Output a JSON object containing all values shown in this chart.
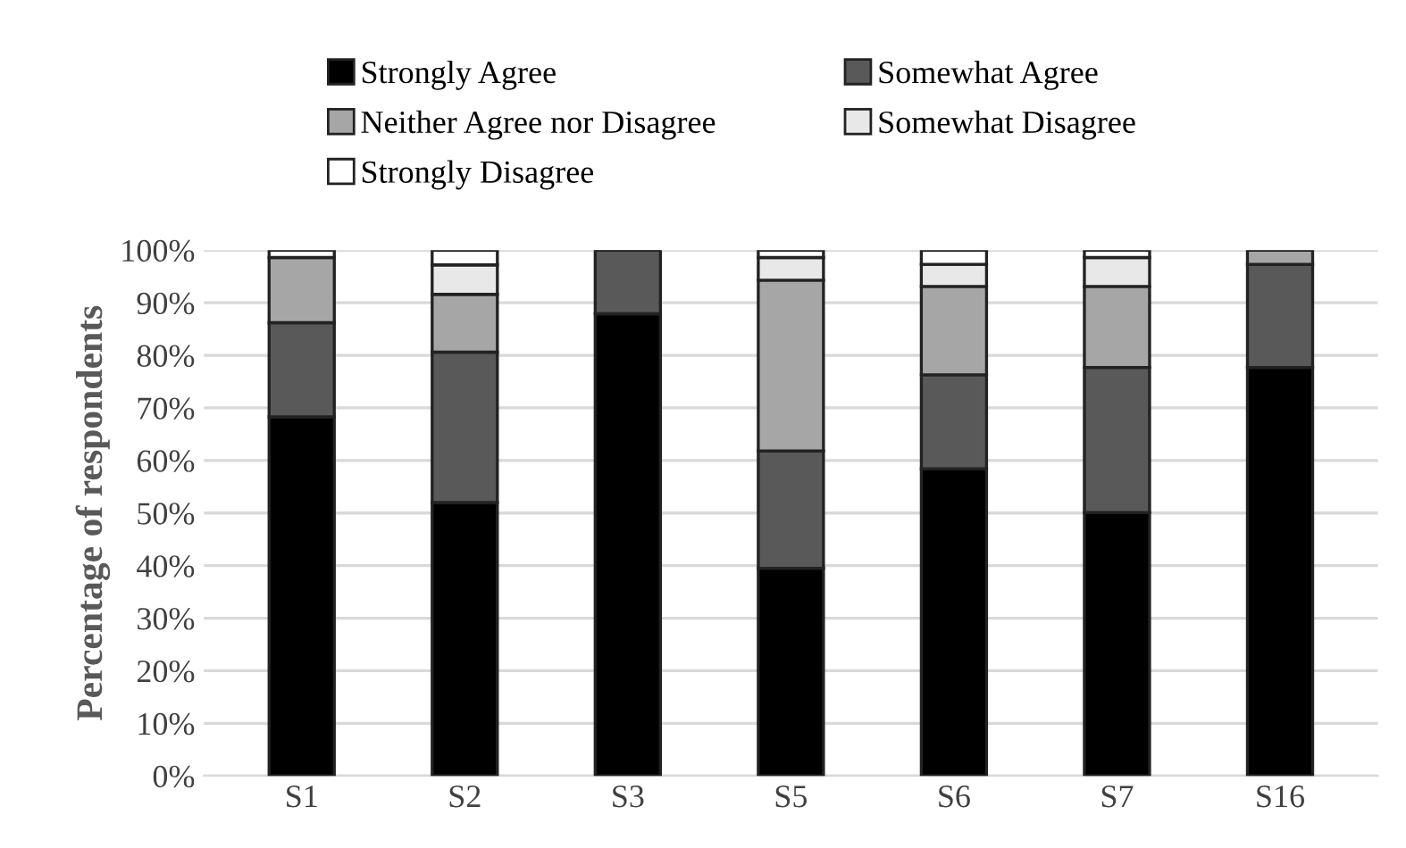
{
  "chart_data": {
    "type": "bar",
    "stacked": true,
    "ylabel": "Percentage of respondents",
    "categories": [
      "S1",
      "S2",
      "S3",
      "S5",
      "S6",
      "S7",
      "S16"
    ],
    "series": [
      {
        "name": "Strongly Agree",
        "color": "#000000",
        "values": [
          68.3,
          52.0,
          87.9,
          39.5,
          58.4,
          50.1,
          77.7
        ]
      },
      {
        "name": "Somewhat Agree",
        "color": "#595959",
        "values": [
          17.9,
          28.6,
          12.1,
          22.3,
          17.9,
          27.6,
          19.6
        ]
      },
      {
        "name": "Neither Agree nor Disagree",
        "color": "#a6a6a6",
        "values": [
          12.4,
          11.0,
          null,
          32.5,
          16.8,
          15.4,
          2.7
        ]
      },
      {
        "name": "Somewhat Disagree",
        "color": "#e8e8e8",
        "values": [
          null,
          5.6,
          null,
          4.3,
          4.2,
          5.5,
          null
        ]
      },
      {
        "name": "Strongly Disagree",
        "color": "#ffffff",
        "values": [
          1.4,
          2.8,
          null,
          1.4,
          2.7,
          1.4,
          null
        ]
      }
    ],
    "ylim": [
      0,
      100
    ],
    "yticks": [
      {
        "value": 0,
        "label": "0%"
      },
      {
        "value": 10,
        "label": "10%"
      },
      {
        "value": 20,
        "label": "20%"
      },
      {
        "value": 30,
        "label": "30%"
      },
      {
        "value": 40,
        "label": "40%"
      },
      {
        "value": 50,
        "label": "50%"
      },
      {
        "value": 60,
        "label": "60%"
      },
      {
        "value": 70,
        "label": "70%"
      },
      {
        "value": 80,
        "label": "80%"
      },
      {
        "value": 90,
        "label": "90%"
      },
      {
        "value": 100,
        "label": "100%"
      }
    ],
    "grid": "y",
    "legend": "top"
  }
}
